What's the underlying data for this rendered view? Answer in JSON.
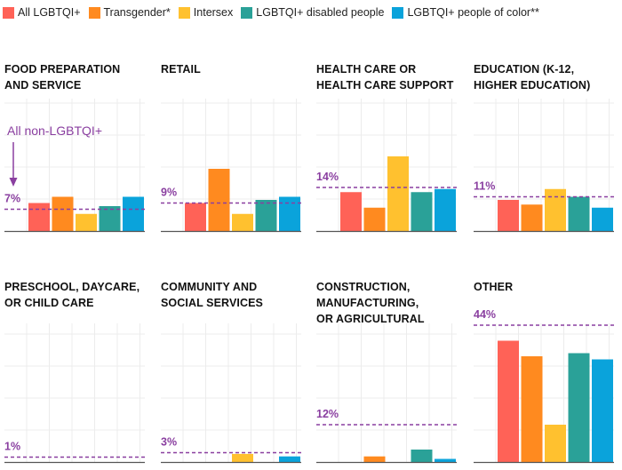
{
  "legend": [
    {
      "label": "All LGBTQI+",
      "color": "#ff6257"
    },
    {
      "label": "Transgender*",
      "color": "#ff8a1f"
    },
    {
      "label": "Intersex",
      "color": "#ffc12f"
    },
    {
      "label": "LGBTQI+ disabled people",
      "color": "#2aa198"
    },
    {
      "label": "LGBTQI+ people of color**",
      "color": "#0aa3db"
    }
  ],
  "reference": {
    "label": "All non-LGBTQI+",
    "color": "#8a3fa0"
  },
  "chart_data": [
    {
      "type": "bar",
      "title": [
        "FOOD PREPARATION",
        "AND SERVICE"
      ],
      "reference_label": "7%",
      "reference_value": 7,
      "series": [
        {
          "name": "All LGBTQI+",
          "value": 9
        },
        {
          "name": "Transgender*",
          "value": 11
        },
        {
          "name": "Intersex",
          "value": 5.5
        },
        {
          "name": "LGBTQI+ disabled people",
          "value": 8
        },
        {
          "name": "LGBTQI+ people of color**",
          "value": 11
        }
      ]
    },
    {
      "type": "bar",
      "title": [
        "RETAIL"
      ],
      "reference_label": "9%",
      "reference_value": 9,
      "series": [
        {
          "name": "All LGBTQI+",
          "value": 9
        },
        {
          "name": "Transgender*",
          "value": 20
        },
        {
          "name": "Intersex",
          "value": 5.5
        },
        {
          "name": "LGBTQI+ disabled people",
          "value": 10
        },
        {
          "name": "LGBTQI+ people of color**",
          "value": 11
        }
      ]
    },
    {
      "type": "bar",
      "title": [
        "HEALTH CARE OR",
        "HEALTH CARE SUPPORT"
      ],
      "reference_label": "14%",
      "reference_value": 14,
      "series": [
        {
          "name": "All LGBTQI+",
          "value": 12.5
        },
        {
          "name": "Transgender*",
          "value": 7.5
        },
        {
          "name": "Intersex",
          "value": 24
        },
        {
          "name": "LGBTQI+ disabled people",
          "value": 12.5
        },
        {
          "name": "LGBTQI+ people of color**",
          "value": 13.5
        }
      ]
    },
    {
      "type": "bar",
      "title": [
        "EDUCATION (K-12,",
        "HIGHER EDUCATION)"
      ],
      "reference_label": "11%",
      "reference_value": 11,
      "series": [
        {
          "name": "All LGBTQI+",
          "value": 10
        },
        {
          "name": "Transgender*",
          "value": 8.5
        },
        {
          "name": "Intersex",
          "value": 13.5
        },
        {
          "name": "LGBTQI+ disabled people",
          "value": 11
        },
        {
          "name": "LGBTQI+ people of color**",
          "value": 7.5
        }
      ]
    },
    {
      "type": "bar",
      "title": [
        "PRESCHOOL, DAYCARE,",
        "OR CHILD CARE"
      ],
      "reference_label": "1%",
      "reference_value": 1,
      "series": [
        {
          "name": "All LGBTQI+",
          "value": 0
        },
        {
          "name": "Transgender*",
          "value": 0
        },
        {
          "name": "Intersex",
          "value": 0
        },
        {
          "name": "LGBTQI+ disabled people",
          "value": 0
        },
        {
          "name": "LGBTQI+ people of color**",
          "value": 0
        }
      ]
    },
    {
      "type": "bar",
      "title": [
        "COMMUNITY AND",
        "SOCIAL SERVICES"
      ],
      "reference_label": "3%",
      "reference_value": 3,
      "series": [
        {
          "name": "All LGBTQI+",
          "value": 0
        },
        {
          "name": "Transgender*",
          "value": 0
        },
        {
          "name": "Intersex",
          "value": 2.6
        },
        {
          "name": "LGBTQI+ disabled people",
          "value": 0
        },
        {
          "name": "LGBTQI+ people of color**",
          "value": 1.8
        }
      ]
    },
    {
      "type": "bar",
      "title": [
        "CONSTRUCTION,",
        "MANUFACTURING,",
        "OR AGRICULTURAL"
      ],
      "reference_label": "12%",
      "reference_value": 12,
      "series": [
        {
          "name": "All LGBTQI+",
          "value": 0
        },
        {
          "name": "Transgender*",
          "value": 1.8
        },
        {
          "name": "Intersex",
          "value": 0
        },
        {
          "name": "LGBTQI+ disabled people",
          "value": 4
        },
        {
          "name": "LGBTQI+ people of color**",
          "value": 1
        }
      ]
    },
    {
      "type": "bar",
      "title": [
        "OTHER"
      ],
      "reference_label": "44%",
      "reference_value": 44,
      "series": [
        {
          "name": "All LGBTQI+",
          "value": 39
        },
        {
          "name": "Transgender*",
          "value": 34
        },
        {
          "name": "Intersex",
          "value": 12
        },
        {
          "name": "LGBTQI+ disabled people",
          "value": 35
        },
        {
          "name": "LGBTQI+ people of color**",
          "value": 33
        }
      ]
    }
  ]
}
